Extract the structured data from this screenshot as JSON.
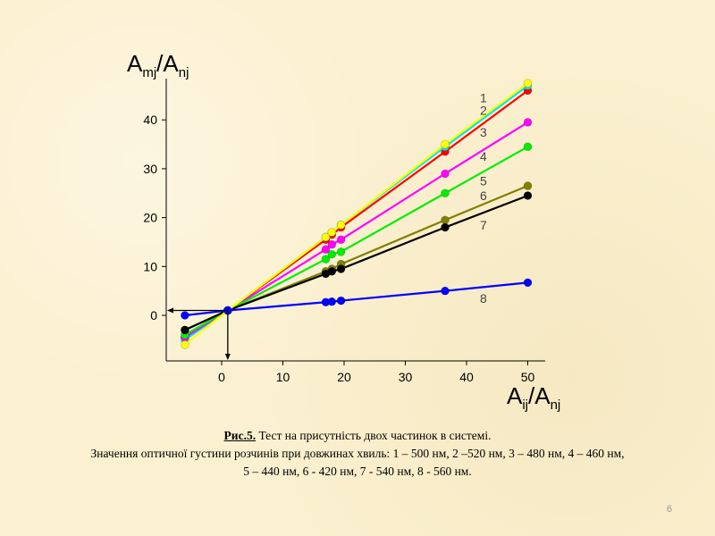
{
  "chart_data": {
    "type": "line",
    "ylabel": {
      "main": "A",
      "sub1": "mj",
      "sep": "/A",
      "sub2": "nj"
    },
    "xlabel": {
      "main": "A",
      "sub1": "ij",
      "sep": "/A",
      "sub2": "nj"
    },
    "xlim": [
      -10,
      53
    ],
    "ylim": [
      -9,
      48
    ],
    "xticks": [
      0,
      10,
      20,
      30,
      40,
      50
    ],
    "yticks": [
      0,
      10,
      20,
      30,
      40
    ],
    "x": [
      -6,
      1,
      17,
      18,
      19.5,
      36.5,
      50
    ],
    "series": [
      {
        "label": "1",
        "color": "#ff0000",
        "values": [
          -4.5,
          1,
          15.5,
          16.5,
          18,
          33.5,
          46
        ]
      },
      {
        "label": "2",
        "color": "#00e5ee",
        "values": [
          -5,
          1,
          16,
          17,
          18.5,
          34.5,
          47
        ]
      },
      {
        "label": "3",
        "color": "#ff00ff",
        "values": [
          -4.5,
          1,
          13.5,
          14.5,
          15.5,
          29,
          39.5
        ]
      },
      {
        "label": "4",
        "color": "#00ee00",
        "values": [
          -4,
          1,
          11.5,
          12.5,
          13,
          25,
          34.5
        ]
      },
      {
        "label": "5",
        "color": "#808000",
        "values": [
          -3,
          1,
          9,
          9.5,
          10.5,
          19.5,
          26.5
        ]
      },
      {
        "label": "6",
        "color": "#000000",
        "values": [
          -3,
          1,
          8.5,
          9,
          9.5,
          18,
          24.5
        ]
      },
      {
        "label": "7",
        "color": "#ffff00",
        "values": [
          -6,
          1,
          16,
          17,
          18.5,
          35,
          47.5
        ]
      },
      {
        "label": "8",
        "color": "#0000ff",
        "values": [
          0,
          1,
          2.7,
          2.8,
          3,
          5,
          6.7
        ]
      }
    ],
    "right_labels": [
      {
        "text": "1",
        "y": 44.5
      },
      {
        "text": "2",
        "y": 42
      },
      {
        "text": "3",
        "y": 37.5
      },
      {
        "text": "4",
        "y": 32.5
      },
      {
        "text": "5",
        "y": 27.5
      },
      {
        "text": "6",
        "y": 24.5
      },
      {
        "text": "7",
        "y": 18.5
      },
      {
        "text": "8",
        "y": 3.5
      }
    ],
    "grid": false,
    "legend": "none"
  },
  "caption": {
    "fig_number": "Рис.5.",
    "line1": " Тест на присутність двох частинок в системі.",
    "line2": "Значення оптичної густини розчинів  при довжинах хвиль: 1 – 500 нм, 2 –520 нм, 3 – 480 нм, 4 – 460 нм,",
    "line3": "5 – 440 нм, 6 - 420 нм, 7 -  540 нм, 8 -  560 нм."
  },
  "page_number": "6"
}
